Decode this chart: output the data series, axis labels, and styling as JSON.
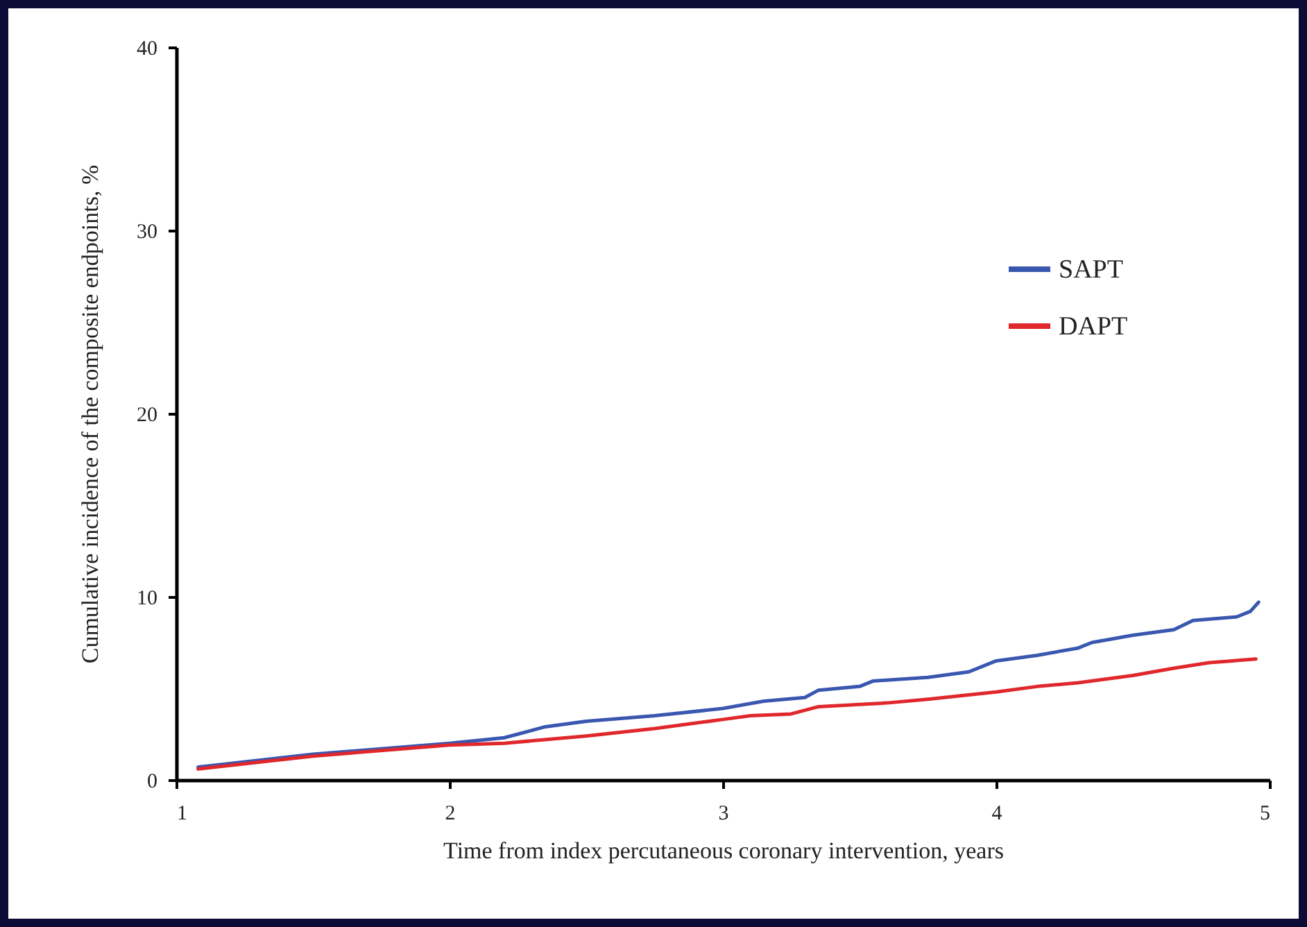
{
  "chart_data": {
    "type": "line",
    "xlabel": "Time from index percutaneous coronary intervention, years",
    "ylabel": "Cumulative incidence of the composite endpoints, %",
    "xlim": [
      1,
      5
    ],
    "xticks": [
      1,
      2,
      3,
      4,
      5
    ],
    "ylim": [
      0,
      40
    ],
    "yticks": [
      0,
      10,
      20,
      30,
      40
    ],
    "grid": false,
    "legend": "top right",
    "marker": "none",
    "line_style": "solid",
    "series": [
      {
        "name": "SAPT",
        "color": "#3a57b0",
        "x": [
          1.08,
          1.2,
          1.5,
          2.0,
          2.2,
          2.35,
          2.5,
          2.75,
          3.0,
          3.15,
          3.3,
          3.35,
          3.5,
          3.55,
          3.75,
          3.9,
          4.0,
          4.15,
          4.3,
          4.35,
          4.5,
          4.65,
          4.72,
          4.88,
          4.93,
          4.96
        ],
        "values": [
          0.7,
          0.9,
          1.4,
          2.0,
          2.3,
          2.9,
          3.2,
          3.5,
          3.9,
          4.3,
          4.5,
          4.9,
          5.1,
          5.4,
          5.6,
          5.9,
          6.5,
          6.8,
          7.2,
          7.5,
          7.9,
          8.2,
          8.7,
          8.9,
          9.2,
          9.7
        ]
      },
      {
        "name": "DAPT",
        "color": "#e0282c",
        "x": [
          1.08,
          1.5,
          2.0,
          2.2,
          2.5,
          2.75,
          3.0,
          3.1,
          3.25,
          3.35,
          3.6,
          3.75,
          4.0,
          4.15,
          4.3,
          4.5,
          4.65,
          4.78,
          4.95
        ],
        "values": [
          0.6,
          1.3,
          1.9,
          2.0,
          2.4,
          2.8,
          3.3,
          3.5,
          3.6,
          4.0,
          4.2,
          4.4,
          4.8,
          5.1,
          5.3,
          5.7,
          6.1,
          6.4,
          6.6
        ]
      }
    ]
  }
}
